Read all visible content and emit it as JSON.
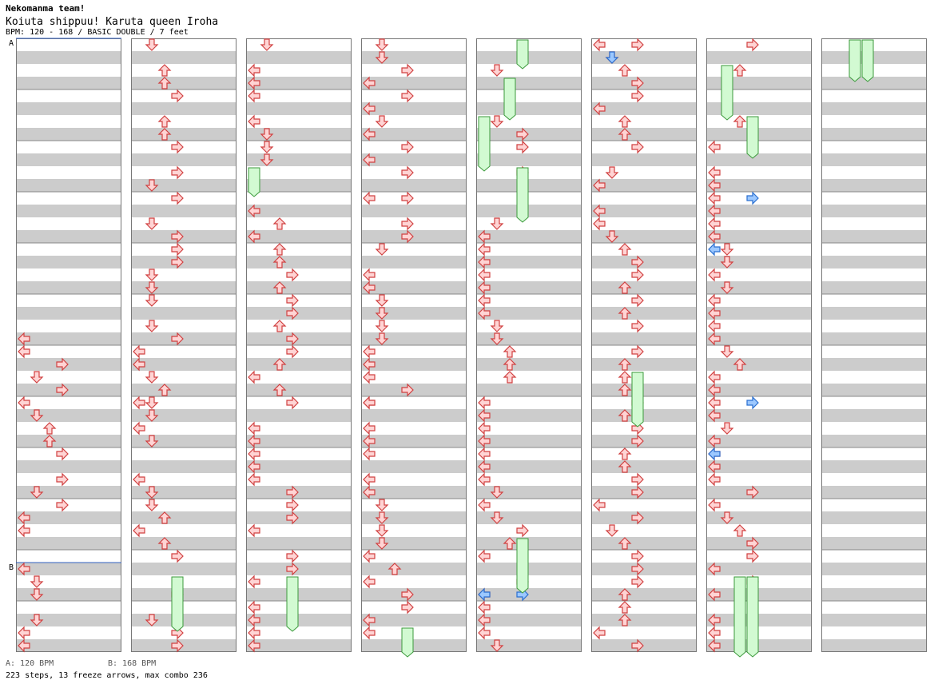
{
  "header": {
    "team": "Nekomanma team!",
    "song": "Koiuta shippuu! Karuta queen Iroha",
    "info": "BPM: 120 - 168 / BASIC DOUBLE / 7 feet"
  },
  "footer": {
    "bpm_a": "A: 120 BPM",
    "bpm_b": "B: 168 BPM",
    "stats": "223 steps, 13 freeze arrows, max combo 236"
  },
  "markers": [
    "A",
    "B"
  ],
  "colors": {
    "normal_fill": "#ffd4d4",
    "normal_stroke": "#d04040",
    "blue_fill": "#9cc8ff",
    "blue_stroke": "#2a6fd0",
    "freeze_fill": "#d2fad2",
    "freeze_stroke": "#3c9a3c",
    "stripe": "#cccccc"
  },
  "chart_data": {
    "type": "step-chart",
    "lanes": [
      "left",
      "down",
      "up",
      "right",
      "left",
      "down",
      "up",
      "right"
    ],
    "panels": [
      {
        "rows": [
          [
            23,
            "L"
          ],
          [
            24,
            "L"
          ],
          [
            25,
            "R"
          ],
          [
            26,
            "D"
          ],
          [
            27,
            "R"
          ],
          [
            28,
            "L"
          ],
          [
            29,
            "D"
          ],
          [
            30,
            "U"
          ],
          [
            31,
            "U"
          ],
          [
            32,
            "R"
          ],
          [
            34,
            "R"
          ],
          [
            35,
            "D"
          ],
          [
            36,
            "R"
          ],
          [
            37,
            "L"
          ],
          [
            38,
            "L"
          ],
          [
            41,
            "L"
          ],
          [
            42,
            "D"
          ],
          [
            43,
            "D"
          ],
          [
            45,
            "D"
          ],
          [
            46,
            "L"
          ],
          [
            47,
            "L"
          ]
        ]
      },
      {
        "rows": [
          [
            0,
            "D"
          ],
          [
            2,
            "U"
          ],
          [
            3,
            "U"
          ],
          [
            4,
            "R"
          ],
          [
            6,
            "U"
          ],
          [
            7,
            "U"
          ],
          [
            8,
            "R"
          ],
          [
            10,
            "R"
          ],
          [
            11,
            "D"
          ],
          [
            12,
            "R"
          ],
          [
            14,
            "D"
          ],
          [
            15,
            "R"
          ],
          [
            16,
            "R"
          ],
          [
            17,
            "R"
          ],
          [
            18,
            "D"
          ],
          [
            19,
            "D"
          ],
          [
            20,
            "D"
          ],
          [
            22,
            "D"
          ],
          [
            23,
            "R"
          ],
          [
            24,
            "L"
          ],
          [
            25,
            "L"
          ],
          [
            26,
            "D"
          ],
          [
            27,
            "U"
          ],
          [
            28,
            "D"
          ],
          [
            28,
            "L"
          ],
          [
            29,
            "D"
          ],
          [
            30,
            "L"
          ],
          [
            31,
            "D"
          ],
          [
            34,
            "L"
          ],
          [
            35,
            "D"
          ],
          [
            36,
            "D"
          ],
          [
            37,
            "U"
          ],
          [
            38,
            "L"
          ],
          [
            39,
            "U"
          ],
          [
            40,
            "R"
          ],
          [
            43,
            "R"
          ],
          [
            45,
            "D"
          ],
          [
            46,
            "R"
          ],
          [
            47,
            "R"
          ]
        ]
      },
      {
        "rows": [
          [
            0,
            "D"
          ],
          [
            2,
            "L"
          ],
          [
            3,
            "L"
          ],
          [
            4,
            "L"
          ],
          [
            6,
            "L"
          ],
          [
            7,
            "D"
          ],
          [
            8,
            "D"
          ],
          [
            9,
            "D"
          ],
          [
            13,
            "L"
          ],
          [
            14,
            "U"
          ],
          [
            15,
            "L"
          ],
          [
            16,
            "U"
          ],
          [
            17,
            "U"
          ],
          [
            18,
            "R"
          ],
          [
            19,
            "U"
          ],
          [
            20,
            "R"
          ],
          [
            21,
            "R"
          ],
          [
            22,
            "U"
          ],
          [
            23,
            "R"
          ],
          [
            24,
            "R"
          ],
          [
            25,
            "U"
          ],
          [
            26,
            "L"
          ],
          [
            27,
            "U"
          ],
          [
            28,
            "R"
          ],
          [
            30,
            "L"
          ],
          [
            31,
            "L"
          ],
          [
            32,
            "L"
          ],
          [
            33,
            "L"
          ],
          [
            34,
            "L"
          ],
          [
            35,
            "R"
          ],
          [
            36,
            "R"
          ],
          [
            37,
            "R"
          ],
          [
            38,
            "L"
          ],
          [
            40,
            "R"
          ],
          [
            41,
            "R"
          ],
          [
            42,
            "L"
          ],
          [
            44,
            "L"
          ],
          [
            45,
            "L"
          ],
          [
            46,
            "L"
          ],
          [
            47,
            "L"
          ]
        ]
      },
      {
        "rows": [
          [
            0,
            "D"
          ],
          [
            1,
            "D"
          ],
          [
            2,
            "R"
          ],
          [
            3,
            "L"
          ],
          [
            4,
            "R"
          ],
          [
            5,
            "L"
          ],
          [
            6,
            "D"
          ],
          [
            7,
            "L"
          ],
          [
            8,
            "R"
          ],
          [
            9,
            "L"
          ],
          [
            10,
            "R"
          ],
          [
            12,
            "L"
          ],
          [
            12,
            "R"
          ],
          [
            14,
            "R"
          ],
          [
            15,
            "R"
          ],
          [
            16,
            "D"
          ],
          [
            18,
            "L"
          ],
          [
            19,
            "L"
          ],
          [
            20,
            "D"
          ],
          [
            21,
            "D"
          ],
          [
            22,
            "D"
          ],
          [
            23,
            "D"
          ],
          [
            24,
            "L"
          ],
          [
            25,
            "L"
          ],
          [
            26,
            "L"
          ],
          [
            27,
            "R"
          ],
          [
            28,
            "L"
          ],
          [
            28,
            "L"
          ],
          [
            30,
            "L"
          ],
          [
            31,
            "L"
          ],
          [
            32,
            "L"
          ],
          [
            34,
            "L"
          ],
          [
            35,
            "L"
          ],
          [
            36,
            "D"
          ],
          [
            37,
            "D"
          ],
          [
            38,
            "D"
          ],
          [
            39,
            "D"
          ],
          [
            40,
            "L"
          ],
          [
            41,
            "U"
          ],
          [
            42,
            "L"
          ],
          [
            43,
            "R"
          ],
          [
            44,
            "R"
          ],
          [
            45,
            "L"
          ],
          [
            46,
            "L"
          ]
        ]
      },
      {
        "rows": [
          [
            2,
            "D"
          ],
          [
            6,
            "D"
          ],
          [
            7,
            "R"
          ],
          [
            8,
            "R"
          ],
          [
            10,
            "R"
          ],
          [
            14,
            "D"
          ],
          [
            15,
            "L"
          ],
          [
            16,
            "L"
          ],
          [
            17,
            "L"
          ],
          [
            18,
            "L"
          ],
          [
            19,
            "L"
          ],
          [
            20,
            "L"
          ],
          [
            21,
            "L"
          ],
          [
            22,
            "D"
          ],
          [
            23,
            "D"
          ],
          [
            24,
            "U"
          ],
          [
            25,
            "U"
          ],
          [
            26,
            "U"
          ],
          [
            28,
            "L"
          ],
          [
            29,
            "L"
          ],
          [
            30,
            "L"
          ],
          [
            31,
            "L"
          ],
          [
            32,
            "L"
          ],
          [
            33,
            "L"
          ],
          [
            34,
            "L"
          ],
          [
            35,
            "D"
          ],
          [
            36,
            "L"
          ],
          [
            37,
            "D"
          ],
          [
            38,
            "R"
          ],
          [
            39,
            "U"
          ],
          [
            40,
            "L"
          ],
          [
            42,
            "R"
          ],
          [
            43,
            "L"
          ],
          [
            44,
            "L"
          ],
          [
            45,
            "L"
          ],
          [
            46,
            "L"
          ],
          [
            47,
            "D"
          ]
        ]
      },
      {
        "rows": [
          [
            0,
            "L"
          ],
          [
            0,
            "R"
          ],
          [
            1,
            "D"
          ],
          [
            2,
            "U"
          ],
          [
            3,
            "R"
          ],
          [
            4,
            "R"
          ],
          [
            5,
            "L"
          ],
          [
            6,
            "U"
          ],
          [
            7,
            "U"
          ],
          [
            8,
            "R"
          ],
          [
            10,
            "D"
          ],
          [
            11,
            "L"
          ],
          [
            13,
            "L"
          ],
          [
            14,
            "L"
          ],
          [
            15,
            "D"
          ],
          [
            16,
            "U"
          ],
          [
            17,
            "R"
          ],
          [
            18,
            "R"
          ],
          [
            19,
            "U"
          ],
          [
            20,
            "R"
          ],
          [
            21,
            "U"
          ],
          [
            22,
            "R"
          ],
          [
            24,
            "R"
          ],
          [
            25,
            "U"
          ],
          [
            26,
            "U"
          ],
          [
            27,
            "U"
          ],
          [
            28,
            "R"
          ],
          [
            29,
            "U"
          ],
          [
            30,
            "R"
          ],
          [
            31,
            "R"
          ],
          [
            32,
            "U"
          ],
          [
            33,
            "U"
          ],
          [
            34,
            "R"
          ],
          [
            35,
            "R"
          ],
          [
            36,
            "L"
          ],
          [
            37,
            "R"
          ],
          [
            38,
            "D"
          ],
          [
            39,
            "U"
          ],
          [
            40,
            "R"
          ],
          [
            41,
            "R"
          ],
          [
            42,
            "R"
          ],
          [
            43,
            "U"
          ],
          [
            44,
            "U"
          ],
          [
            45,
            "U"
          ],
          [
            46,
            "L"
          ],
          [
            47,
            "R"
          ]
        ]
      },
      {
        "rows": [
          [
            0,
            "R"
          ],
          [
            2,
            "U"
          ],
          [
            6,
            "U"
          ],
          [
            8,
            "L"
          ],
          [
            10,
            "L"
          ],
          [
            11,
            "L"
          ],
          [
            12,
            "L"
          ],
          [
            13,
            "L"
          ],
          [
            14,
            "L"
          ],
          [
            15,
            "L"
          ],
          [
            16,
            "D"
          ],
          [
            17,
            "D"
          ],
          [
            18,
            "L"
          ],
          [
            19,
            "D"
          ],
          [
            20,
            "L"
          ],
          [
            21,
            "L"
          ],
          [
            22,
            "L"
          ],
          [
            23,
            "L"
          ],
          [
            24,
            "D"
          ],
          [
            25,
            "U"
          ],
          [
            26,
            "L"
          ],
          [
            27,
            "L"
          ],
          [
            28,
            "L"
          ],
          [
            29,
            "L"
          ],
          [
            30,
            "D"
          ],
          [
            31,
            "L"
          ],
          [
            32,
            "L"
          ],
          [
            33,
            "L"
          ],
          [
            34,
            "L"
          ],
          [
            35,
            "R"
          ],
          [
            36,
            "L"
          ],
          [
            37,
            "D"
          ],
          [
            38,
            "U"
          ],
          [
            39,
            "R"
          ],
          [
            40,
            "R"
          ],
          [
            41,
            "L"
          ],
          [
            42,
            "R"
          ],
          [
            43,
            "L"
          ],
          [
            45,
            "L"
          ],
          [
            46,
            "L"
          ],
          [
            47,
            "L"
          ]
        ]
      },
      {
        "rows": []
      }
    ]
  }
}
